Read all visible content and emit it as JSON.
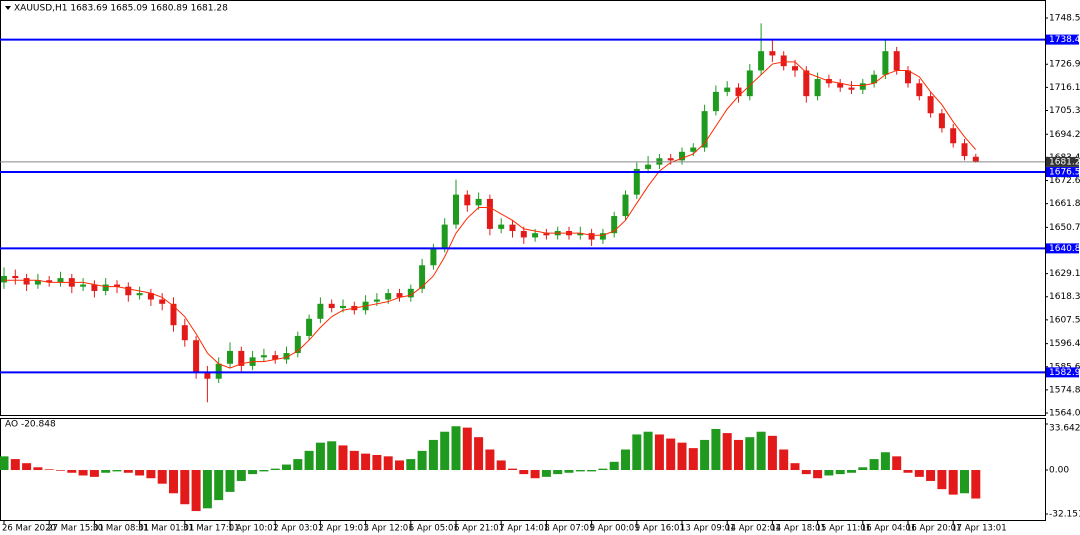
{
  "chart_data": [
    {
      "type": "candlestick",
      "title": "XAUUSD,H1  1683.69 1685.09 1680.89 1681.28",
      "categories": [
        "26 Mar 2020",
        null,
        null,
        null,
        "27 Mar 15:01",
        null,
        null,
        null,
        "30 Mar 08:01",
        null,
        null,
        null,
        "31 Mar 01:01",
        null,
        null,
        null,
        "31 Mar 17:01",
        null,
        null,
        null,
        "1 Apr 10:01",
        null,
        null,
        null,
        "2 Apr 03:01",
        null,
        null,
        null,
        "2 Apr 19:01",
        null,
        null,
        null,
        "3 Apr 12:01",
        null,
        null,
        null,
        "6 Apr 05:01",
        null,
        null,
        null,
        "6 Apr 21:01",
        null,
        null,
        null,
        "7 Apr 14:01",
        null,
        null,
        null,
        "8 Apr 07:01",
        null,
        null,
        null,
        "9 Apr 00:01",
        null,
        null,
        null,
        "9 Apr 16:01",
        null,
        null,
        null,
        "13 Apr 09:01",
        null,
        null,
        null,
        "14 Apr 02:01",
        null,
        null,
        null,
        "14 Apr 18:01",
        null,
        null,
        null,
        "15 Apr 11:01",
        null,
        null,
        null,
        "16 Apr 04:01",
        null,
        null,
        null,
        "16 Apr 20:01",
        null,
        null,
        null,
        "17 Apr 13:01",
        null,
        null
      ],
      "open": [
        1625,
        1628,
        1627,
        1624,
        1626,
        1625,
        1627,
        1623,
        1624,
        1621,
        1624,
        1623,
        1619,
        1620,
        1617,
        1615,
        1605,
        1598,
        1583,
        1580,
        1587,
        1593,
        1586,
        1590,
        1591,
        1589,
        1592,
        1600,
        1608,
        1615,
        1613,
        1614,
        1612,
        1616,
        1617,
        1620,
        1618,
        1622,
        1633,
        1641,
        1652,
        1666,
        1661,
        1664,
        1650,
        1652,
        1649,
        1646,
        1648,
        1647,
        1649,
        1647,
        1648,
        1645,
        1648,
        1656,
        1666,
        1678,
        1680,
        1683,
        1682,
        1686,
        1688,
        1705,
        1714,
        1716,
        1712,
        1724,
        1733,
        1731,
        1726,
        1724,
        1712,
        1720,
        1718,
        1716,
        1715,
        1718,
        1722,
        1733,
        1724,
        1718,
        1712,
        1704,
        1697,
        1690,
        1683.69
      ],
      "high": [
        1632,
        1631,
        1629,
        1629,
        1628,
        1630,
        1629,
        1627,
        1626,
        1627,
        1626,
        1625,
        1623,
        1622,
        1620,
        1618,
        1608,
        1600,
        1586,
        1590,
        1597,
        1595,
        1593,
        1594,
        1593,
        1595,
        1602,
        1610,
        1618,
        1617,
        1617,
        1616,
        1619,
        1620,
        1622,
        1622,
        1624,
        1636,
        1643,
        1655,
        1673,
        1668,
        1667,
        1666,
        1655,
        1654,
        1651,
        1650,
        1650,
        1651,
        1651,
        1651,
        1650,
        1650,
        1658,
        1668,
        1681,
        1684,
        1685,
        1685,
        1688,
        1690,
        1708,
        1717,
        1719,
        1718,
        1727,
        1746,
        1738,
        1733,
        1729,
        1726,
        1723,
        1722,
        1720,
        1719,
        1720,
        1724,
        1738,
        1735,
        1726,
        1720,
        1714,
        1706,
        1699,
        1692,
        1685.09
      ],
      "low": [
        1622,
        1624,
        1621,
        1622,
        1623,
        1623,
        1620,
        1621,
        1618,
        1619,
        1620,
        1616,
        1617,
        1614,
        1612,
        1602,
        1595,
        1580,
        1569,
        1578,
        1585,
        1583,
        1584,
        1588,
        1587,
        1587,
        1590,
        1598,
        1606,
        1611,
        1611,
        1610,
        1610,
        1614,
        1615,
        1616,
        1616,
        1620,
        1631,
        1639,
        1650,
        1658,
        1659,
        1647,
        1648,
        1646,
        1643,
        1644,
        1645,
        1645,
        1645,
        1645,
        1642,
        1643,
        1646,
        1654,
        1664,
        1676,
        1678,
        1680,
        1680,
        1684,
        1686,
        1703,
        1712,
        1709,
        1710,
        1722,
        1728,
        1724,
        1721,
        1709,
        1710,
        1716,
        1714,
        1713,
        1713,
        1716,
        1720,
        1722,
        1716,
        1710,
        1702,
        1695,
        1688,
        1682,
        1680.89
      ],
      "close": [
        1628,
        1627,
        1624,
        1626,
        1625,
        1627,
        1623,
        1624,
        1621,
        1624,
        1623,
        1619,
        1620,
        1617,
        1615,
        1605,
        1598,
        1583,
        1580,
        1587,
        1593,
        1586,
        1590,
        1591,
        1589,
        1592,
        1600,
        1608,
        1615,
        1613,
        1614,
        1612,
        1616,
        1617,
        1620,
        1618,
        1622,
        1633,
        1641,
        1652,
        1666,
        1661,
        1664,
        1650,
        1652,
        1649,
        1646,
        1648,
        1647,
        1649,
        1647,
        1648,
        1645,
        1648,
        1656,
        1666,
        1678,
        1680,
        1683,
        1682,
        1686,
        1688,
        1705,
        1714,
        1716,
        1712,
        1724,
        1733,
        1731,
        1726,
        1724,
        1712,
        1720,
        1718,
        1716,
        1715,
        1718,
        1722,
        1733,
        1724,
        1718,
        1712,
        1704,
        1697,
        1690,
        1684,
        1681.28
      ],
      "up_color": "#1f9a1f",
      "down_color": "#e31a1a",
      "ma": {
        "color": "#ff2a00",
        "values": [
          1626,
          1626,
          1626,
          1626,
          1625,
          1625,
          1625,
          1625,
          1624,
          1623,
          1623,
          1622,
          1621,
          1620,
          1618,
          1614,
          1609,
          1601,
          1592,
          1587,
          1585,
          1587,
          1588,
          1588,
          1589,
          1590,
          1593,
          1598,
          1604,
          1609,
          1612,
          1613,
          1614,
          1615,
          1616,
          1618,
          1619,
          1623,
          1628,
          1637,
          1648,
          1655,
          1660,
          1660,
          1657,
          1654,
          1650,
          1649,
          1648,
          1648,
          1648,
          1648,
          1647,
          1647,
          1649,
          1654,
          1662,
          1670,
          1677,
          1681,
          1683,
          1685,
          1690,
          1698,
          1706,
          1712,
          1717,
          1722,
          1727,
          1728,
          1728,
          1723,
          1721,
          1719,
          1718,
          1717,
          1717,
          1718,
          1722,
          1724,
          1724,
          1721,
          1714,
          1708,
          1700,
          1693,
          1687
        ]
      },
      "ylim": [
        1564.0,
        1748.5
      ],
      "yticks": [
        {
          "value": 1748.5,
          "label": "1748.50"
        },
        {
          "value": 1726.9,
          "label": "1726.90"
        },
        {
          "value": 1716.1,
          "label": "1716.10"
        },
        {
          "value": 1705.3,
          "label": "1705.30"
        },
        {
          "value": 1694.2,
          "label": "1694.20"
        },
        {
          "value": 1683.4,
          "label": "1683.40"
        },
        {
          "value": 1672.6,
          "label": "1672.60"
        },
        {
          "value": 1661.8,
          "label": "1661.80"
        },
        {
          "value": 1650.7,
          "label": "1650.70"
        },
        {
          "value": 1629.1,
          "label": "1629.10"
        },
        {
          "value": 1618.3,
          "label": "1618.30"
        },
        {
          "value": 1607.5,
          "label": "1607.50"
        },
        {
          "value": 1596.4,
          "label": "1596.40"
        },
        {
          "value": 1585.6,
          "label": "1585.60"
        },
        {
          "value": 1574.8,
          "label": "1574.80"
        },
        {
          "value": 1564.0,
          "label": "1564.00"
        }
      ],
      "levels": [
        {
          "value": 1738.41,
          "label": "1738.41"
        },
        {
          "value": 1676.55,
          "label": "1676.55"
        },
        {
          "value": 1640.89,
          "label": "1640.89"
        },
        {
          "value": 1582.98,
          "label": "1582.98"
        }
      ],
      "level_color": "#0000ff",
      "current_price": {
        "value": 1681.28,
        "label": "1681.28"
      }
    },
    {
      "type": "bar",
      "title": "AO -20.848",
      "values": [
        10,
        8,
        5,
        2,
        0.5,
        -0.5,
        -2,
        -4,
        -5,
        -2,
        -1,
        -2,
        -4,
        -6,
        -10,
        -17,
        -25,
        -30,
        -28,
        -22,
        -16,
        -8,
        -3,
        -1,
        1,
        4,
        8,
        14,
        20,
        21,
        18,
        14,
        12,
        11,
        10,
        7,
        8,
        14,
        22,
        28,
        32,
        31,
        24,
        15,
        7,
        1,
        -3,
        -6,
        -5,
        -3,
        -2,
        -1,
        -1,
        1,
        6,
        15,
        26,
        28,
        26,
        23,
        20,
        16,
        22,
        30,
        27,
        22,
        24,
        28,
        25,
        15,
        5,
        -3,
        -6,
        -4,
        -3,
        -2,
        2,
        8,
        13,
        10,
        -2,
        -5,
        -8,
        -14,
        -18,
        -17,
        -20.848
      ],
      "up_color": "#1f9a1f",
      "down_color": "#e31a1a",
      "ylim": [
        -32.151,
        33.642
      ],
      "yticks": [
        {
          "value": 33.642,
          "label": "33.642"
        },
        {
          "value": 0,
          "label": "0.00"
        },
        {
          "value": -32.151,
          "label": "-32.151"
        }
      ]
    }
  ]
}
